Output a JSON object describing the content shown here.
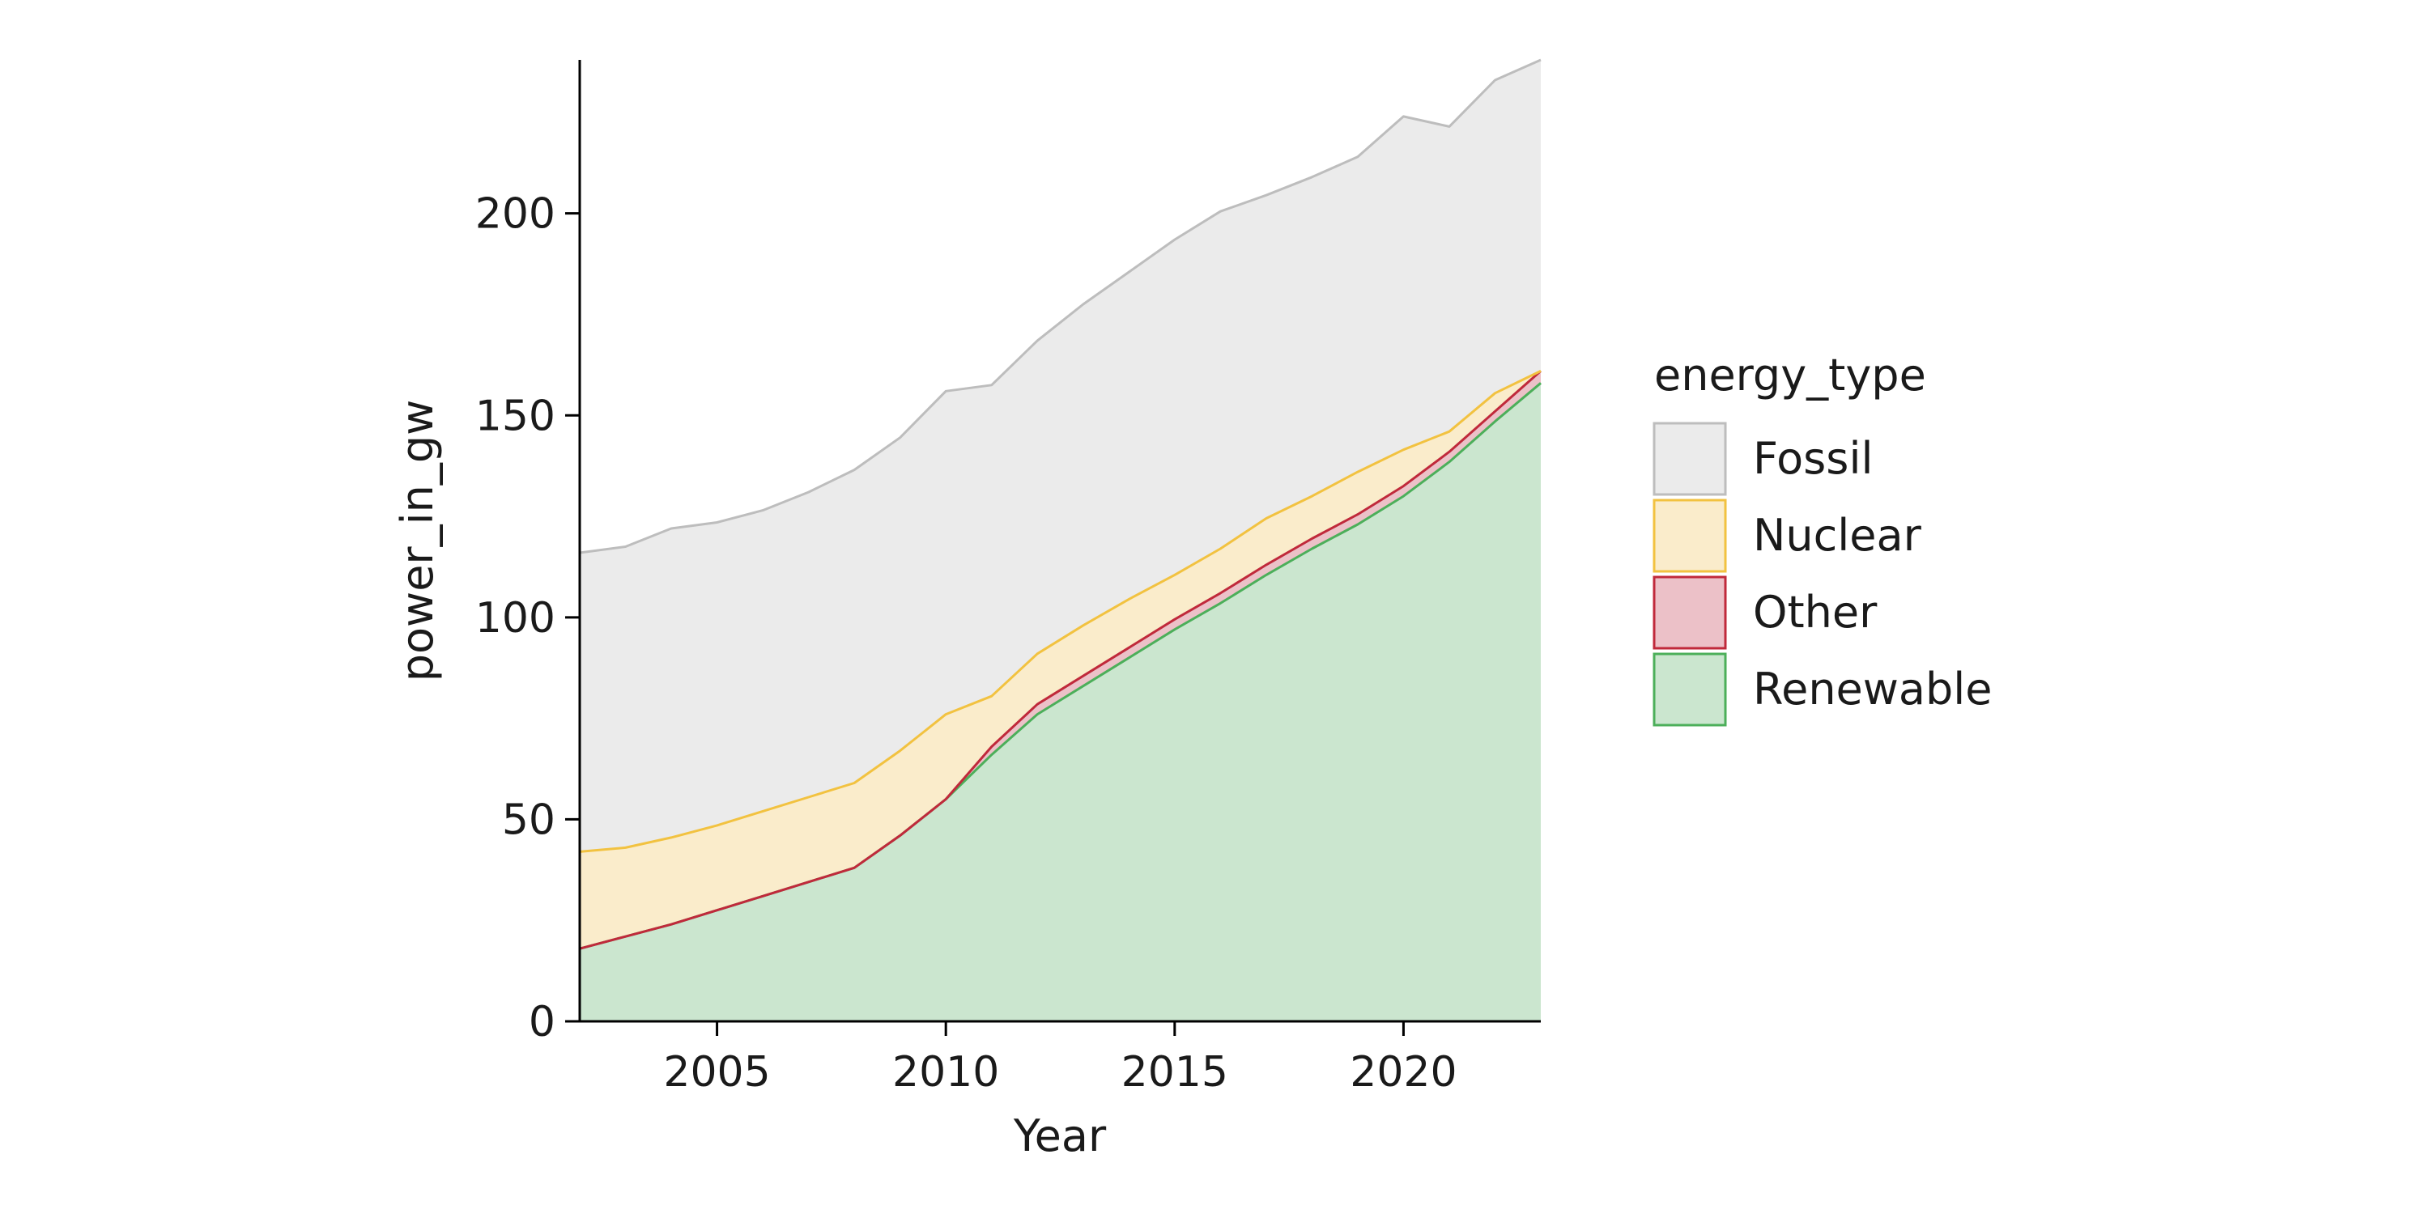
{
  "chart_data": {
    "type": "area",
    "stacked": true,
    "xlabel": "Year",
    "ylabel": "power_in_gw",
    "xlim": [
      2002,
      2023
    ],
    "ylim": [
      0,
      238
    ],
    "xticks": [
      2005,
      2010,
      2015,
      2020
    ],
    "yticks": [
      0,
      50,
      100,
      150,
      200
    ],
    "grid": false,
    "legend": {
      "title": "energy_type",
      "placement": "right"
    },
    "x": [
      2002,
      2003,
      2004,
      2005,
      2006,
      2007,
      2008,
      2009,
      2010,
      2011,
      2012,
      2013,
      2014,
      2015,
      2016,
      2017,
      2018,
      2019,
      2020,
      2021,
      2022,
      2023
    ],
    "series": [
      {
        "name": "Renewable",
        "color": "#4caf5a",
        "fill": "#cbe6cf",
        "values": [
          18,
          21,
          24,
          27.5,
          31,
          34.5,
          38,
          46,
          55,
          66,
          76,
          83,
          90,
          97,
          103.5,
          110.5,
          117,
          123,
          130,
          138.5,
          148.5,
          158
        ]
      },
      {
        "name": "Other",
        "color": "#c0293b",
        "fill": "#ecc1c8",
        "values": [
          0,
          0,
          0,
          0,
          0,
          0,
          0,
          0,
          0,
          2,
          2.5,
          2.5,
          2.5,
          2.5,
          2.5,
          2.5,
          2.5,
          2.5,
          2.5,
          2.5,
          2.5,
          3
        ]
      },
      {
        "name": "Nuclear",
        "color": "#f2c240",
        "fill": "#faeccb",
        "values": [
          24,
          22,
          21.5,
          21,
          21,
          21,
          21,
          21,
          21,
          12.5,
          12.5,
          12.5,
          12,
          11,
          11,
          11.5,
          10.5,
          10.5,
          9,
          5,
          4.5,
          0
        ]
      },
      {
        "name": "Fossil",
        "color": "#bdbdbd",
        "fill": "#ebebeb",
        "values": [
          74,
          74.5,
          76.5,
          75,
          74.5,
          75.5,
          77.5,
          77.5,
          80,
          77,
          77.5,
          79.5,
          81,
          83,
          83.5,
          80,
          79,
          78,
          82.5,
          75.5,
          77.5,
          77
        ]
      }
    ]
  }
}
